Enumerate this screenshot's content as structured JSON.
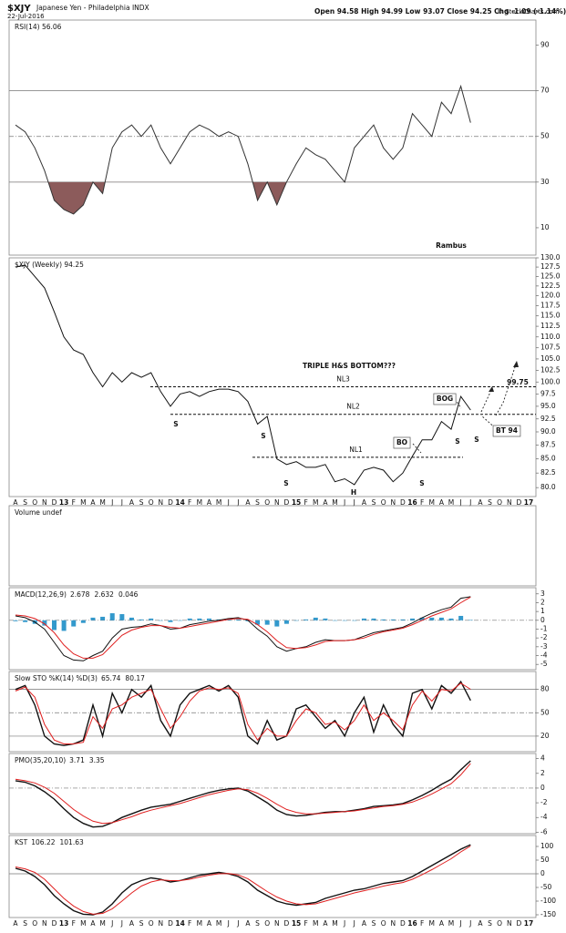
{
  "header": {
    "symbol": "$XJY",
    "name": "Japanese Yen - Philadelphia INDX",
    "date": "22-Jul-2016",
    "quote": "Open 94.58 High 94.99 Low 93.07 Close 94.25 Chg -1.09 (-1.14%)",
    "credit": "© StockCharts.com"
  },
  "chart_data": [
    {
      "type": "line",
      "title": "RSI(14) 56.06",
      "ylim": [
        -2,
        101
      ],
      "yticks": [
        10,
        30,
        50,
        70,
        90
      ],
      "levels": [
        30,
        50,
        70
      ],
      "fill_below": 30,
      "fill_color": "#8c5b5b",
      "annotations": [
        "Rambus"
      ],
      "series": [
        {
          "color": "#333333",
          "values": [
            55,
            52,
            45,
            35,
            22,
            18,
            16,
            20,
            30,
            25,
            45,
            52,
            55,
            50,
            55,
            45,
            38,
            45,
            52,
            55,
            53,
            50,
            52,
            50,
            38,
            22,
            30,
            20,
            30,
            38,
            45,
            42,
            40,
            35,
            30,
            45,
            50,
            55,
            45,
            40,
            45,
            60,
            55,
            50,
            65,
            60,
            72,
            56.06,
            null,
            null,
            null,
            null,
            null,
            null
          ]
        }
      ]
    },
    {
      "type": "line",
      "title": "$XJY (Weekly) 94.25",
      "log_scale": true,
      "ylim": [
        78.5,
        130
      ],
      "yticks": [
        {
          "value": 80,
          "label": "80.0"
        },
        82.5,
        {
          "value": 85,
          "label": "85.0"
        },
        87.5,
        {
          "value": 90,
          "label": "90.0"
        },
        92.5,
        {
          "value": 95,
          "label": "95.0"
        },
        97.5,
        {
          "value": 100,
          "label": "100.0"
        },
        102.5,
        {
          "value": 105,
          "label": "105.0"
        },
        107.5,
        {
          "value": 110,
          "label": "110.0"
        },
        112.5,
        {
          "value": 115,
          "label": "115.0"
        },
        117.5,
        {
          "value": 120,
          "label": "120.0"
        },
        122.5,
        {
          "value": 125,
          "label": "125.0"
        },
        127.5,
        {
          "value": 130,
          "label": "130.0"
        }
      ],
      "categories": [
        "A",
        "S",
        "O",
        "N",
        "D",
        "13",
        "F",
        "M",
        "A",
        "M",
        "J",
        "J",
        "A",
        "S",
        "O",
        "N",
        "D",
        "14",
        "F",
        "M",
        "A",
        "M",
        "J",
        "J",
        "A",
        "S",
        "O",
        "N",
        "D",
        "15",
        "F",
        "M",
        "A",
        "M",
        "J",
        "J",
        "A",
        "S",
        "O",
        "N",
        "D",
        "16",
        "F",
        "M",
        "A",
        "M",
        "J",
        "J",
        "A",
        "S",
        "O",
        "N",
        "D",
        "17"
      ],
      "necklines": [
        {
          "label": "NL3",
          "value": 99
        },
        {
          "label": "NL2",
          "value": 93.4
        },
        {
          "label": "NL1",
          "value": 85.3
        }
      ],
      "annotations": [
        "TRIPLE H&S BOTTOM???",
        "S",
        "S",
        "S",
        "H",
        "S",
        "S",
        "S",
        "BOG",
        "BO",
        "BT 94",
        "99.75"
      ],
      "series": [
        {
          "color": "#111111",
          "values": [
            127.5,
            128,
            125,
            122,
            116,
            110,
            107,
            106,
            102,
            99,
            102,
            100,
            102,
            101,
            102,
            98,
            95,
            97.5,
            98,
            97,
            98,
            98.5,
            98.5,
            98,
            96,
            91.5,
            93,
            85,
            84,
            84.5,
            83.5,
            83.5,
            84,
            81,
            81.5,
            80.5,
            83,
            83.5,
            83,
            81,
            82.5,
            85.5,
            88.5,
            88.5,
            92,
            90.5,
            97,
            94.25,
            null,
            null,
            null,
            null,
            null,
            null
          ]
        }
      ]
    },
    {
      "type": "bar",
      "title": "Volume undef"
    },
    {
      "type": "line",
      "title": "MACD(12,26,9)",
      "latest": [
        2.678,
        2.632,
        0.046
      ],
      "ylim": [
        -5.6,
        3.7
      ],
      "yticks": [
        3,
        2,
        1,
        0,
        -1,
        -2,
        -3,
        -4,
        -5
      ],
      "levels": [
        0
      ],
      "series": [
        {
          "color": "#3399cc",
          "type": "bar",
          "values": [
            -0.1,
            -0.2,
            -0.4,
            -0.6,
            -1.1,
            -1.2,
            -0.7,
            -0.3,
            0.3,
            0.4,
            0.8,
            0.7,
            0.3,
            0.1,
            0.2,
            0,
            -0.2,
            0,
            0.2,
            0.2,
            0.2,
            0.1,
            0.1,
            0.1,
            -0.1,
            -0.5,
            -0.5,
            -0.7,
            -0.4,
            0,
            0.1,
            0.3,
            0.2,
            0,
            0,
            0,
            0.2,
            0.2,
            0.1,
            0.1,
            0.1,
            0.2,
            0.3,
            0.3,
            0.3,
            0.2,
            0.5,
            0.046,
            null,
            null,
            null,
            null,
            null,
            null
          ]
        },
        {
          "color": "#111111",
          "values": [
            0.5,
            0.3,
            -0.2,
            -1,
            -2.5,
            -4,
            -4.5,
            -4.6,
            -4,
            -3.5,
            -2,
            -1,
            -0.8,
            -0.7,
            -0.4,
            -0.6,
            -1,
            -0.9,
            -0.5,
            -0.3,
            -0.1,
            0,
            0.2,
            0.3,
            0,
            -1,
            -1.8,
            -3,
            -3.5,
            -3.2,
            -3,
            -2.5,
            -2.2,
            -2.3,
            -2.3,
            -2.2,
            -1.8,
            -1.4,
            -1.2,
            -1,
            -0.8,
            -0.3,
            0.3,
            0.8,
            1.2,
            1.5,
            2.5,
            2.678,
            null,
            null,
            null,
            null,
            null,
            null
          ]
        },
        {
          "color": "#e02020",
          "values": [
            0.6,
            0.5,
            0.2,
            -0.4,
            -1.4,
            -2.8,
            -3.8,
            -4.3,
            -4.3,
            -3.9,
            -2.8,
            -1.7,
            -1.1,
            -0.8,
            -0.6,
            -0.6,
            -0.8,
            -0.9,
            -0.7,
            -0.5,
            -0.3,
            -0.1,
            0.1,
            0.2,
            0.1,
            -0.5,
            -1.3,
            -2.3,
            -3.1,
            -3.2,
            -3.1,
            -2.8,
            -2.4,
            -2.3,
            -2.3,
            -2.2,
            -2,
            -1.6,
            -1.3,
            -1.1,
            -0.9,
            -0.5,
            0,
            0.5,
            0.9,
            1.3,
            2,
            2.632,
            null,
            null,
            null,
            null,
            null,
            null
          ]
        }
      ]
    },
    {
      "type": "line",
      "title": "Slow STO %K(14) %D(3)",
      "latest": [
        65.74,
        80.17
      ],
      "ylim": [
        0,
        103
      ],
      "yticks": [
        80,
        50,
        20
      ],
      "levels": [
        20,
        50,
        80
      ],
      "series": [
        {
          "color": "#111111",
          "values": [
            80,
            85,
            60,
            20,
            10,
            8,
            10,
            15,
            60,
            20,
            75,
            50,
            80,
            70,
            85,
            40,
            20,
            60,
            75,
            80,
            85,
            78,
            85,
            70,
            20,
            10,
            40,
            15,
            20,
            55,
            60,
            45,
            30,
            40,
            20,
            50,
            70,
            25,
            60,
            35,
            20,
            75,
            80,
            55,
            85,
            75,
            90,
            65.74,
            null,
            null,
            null,
            null,
            null,
            null
          ]
        },
        {
          "color": "#e02020",
          "values": [
            78,
            83,
            70,
            35,
            15,
            10,
            10,
            12,
            45,
            30,
            55,
            60,
            70,
            75,
            80,
            55,
            30,
            45,
            65,
            78,
            82,
            80,
            82,
            75,
            35,
            15,
            30,
            20,
            20,
            40,
            55,
            50,
            35,
            38,
            28,
            40,
            60,
            40,
            50,
            40,
            28,
            60,
            78,
            65,
            80,
            78,
            88,
            80.17,
            null,
            null,
            null,
            null,
            null,
            null
          ]
        }
      ]
    },
    {
      "type": "line",
      "title": "PMO(35,20,10)",
      "latest": [
        3.71,
        3.35
      ],
      "ylim": [
        -6.2,
        4.7
      ],
      "yticks": [
        4,
        2,
        0,
        -2,
        -4,
        -6
      ],
      "levels": [
        0
      ],
      "series": [
        {
          "color": "#111111",
          "values": [
            1,
            0.8,
            0.3,
            -0.5,
            -1.5,
            -2.8,
            -4,
            -4.8,
            -5.3,
            -5.2,
            -4.7,
            -4,
            -3.5,
            -3,
            -2.6,
            -2.4,
            -2.2,
            -1.8,
            -1.4,
            -1,
            -0.6,
            -0.3,
            -0.1,
            0,
            -0.4,
            -1.2,
            -2,
            -3,
            -3.6,
            -3.8,
            -3.7,
            -3.5,
            -3.3,
            -3.2,
            -3.2,
            -3,
            -2.8,
            -2.5,
            -2.4,
            -2.3,
            -2.1,
            -1.6,
            -1,
            -0.3,
            0.5,
            1.2,
            2.5,
            3.71,
            null,
            null,
            null,
            null,
            null,
            null
          ]
        },
        {
          "color": "#e02020",
          "values": [
            1.2,
            1,
            0.7,
            0.1,
            -0.7,
            -1.8,
            -2.9,
            -3.8,
            -4.5,
            -4.8,
            -4.7,
            -4.3,
            -3.9,
            -3.4,
            -3,
            -2.7,
            -2.4,
            -2.1,
            -1.7,
            -1.3,
            -0.9,
            -0.6,
            -0.3,
            -0.1,
            -0.2,
            -0.7,
            -1.4,
            -2.2,
            -2.9,
            -3.3,
            -3.5,
            -3.5,
            -3.4,
            -3.3,
            -3.2,
            -3.1,
            -2.9,
            -2.7,
            -2.5,
            -2.4,
            -2.2,
            -1.9,
            -1.4,
            -0.8,
            -0.1,
            0.6,
            1.8,
            3.35,
            null,
            null,
            null,
            null,
            null,
            null
          ]
        }
      ]
    },
    {
      "type": "line",
      "title": "KST",
      "latest": [
        106.22,
        101.63
      ],
      "ylim": [
        -160,
        140
      ],
      "yticks": [
        100,
        50,
        0,
        -50,
        -100,
        -150
      ],
      "levels": [
        0
      ],
      "categories": [
        "A",
        "S",
        "O",
        "N",
        "D",
        "13",
        "F",
        "M",
        "A",
        "M",
        "J",
        "J",
        "A",
        "S",
        "O",
        "N",
        "D",
        "14",
        "F",
        "M",
        "A",
        "M",
        "J",
        "J",
        "A",
        "S",
        "O",
        "N",
        "D",
        "15",
        "F",
        "M",
        "A",
        "M",
        "J",
        "J",
        "A",
        "S",
        "O",
        "N",
        "D",
        "16",
        "F",
        "M",
        "A",
        "M",
        "J",
        "J",
        "A",
        "S",
        "O",
        "N",
        "D",
        "17"
      ],
      "series": [
        {
          "color": "#111111",
          "values": [
            20,
            10,
            -10,
            -40,
            -80,
            -110,
            -135,
            -148,
            -150,
            -140,
            -110,
            -70,
            -40,
            -25,
            -15,
            -20,
            -30,
            -25,
            -15,
            -5,
            0,
            5,
            0,
            -10,
            -30,
            -60,
            -80,
            -100,
            -110,
            -115,
            -110,
            -105,
            -90,
            -80,
            -70,
            -60,
            -55,
            -45,
            -35,
            -30,
            -25,
            -10,
            10,
            30,
            50,
            70,
            90,
            106.22,
            null,
            null,
            null,
            null,
            null,
            null
          ]
        },
        {
          "color": "#e02020",
          "values": [
            25,
            18,
            5,
            -20,
            -55,
            -90,
            -118,
            -138,
            -148,
            -145,
            -128,
            -100,
            -70,
            -45,
            -30,
            -22,
            -25,
            -25,
            -20,
            -12,
            -5,
            0,
            1,
            -4,
            -18,
            -42,
            -65,
            -85,
            -100,
            -110,
            -113,
            -110,
            -100,
            -90,
            -80,
            -70,
            -62,
            -54,
            -45,
            -38,
            -32,
            -20,
            -3,
            15,
            35,
            55,
            80,
            101.63,
            null,
            null,
            null,
            null,
            null,
            null
          ]
        }
      ]
    }
  ]
}
